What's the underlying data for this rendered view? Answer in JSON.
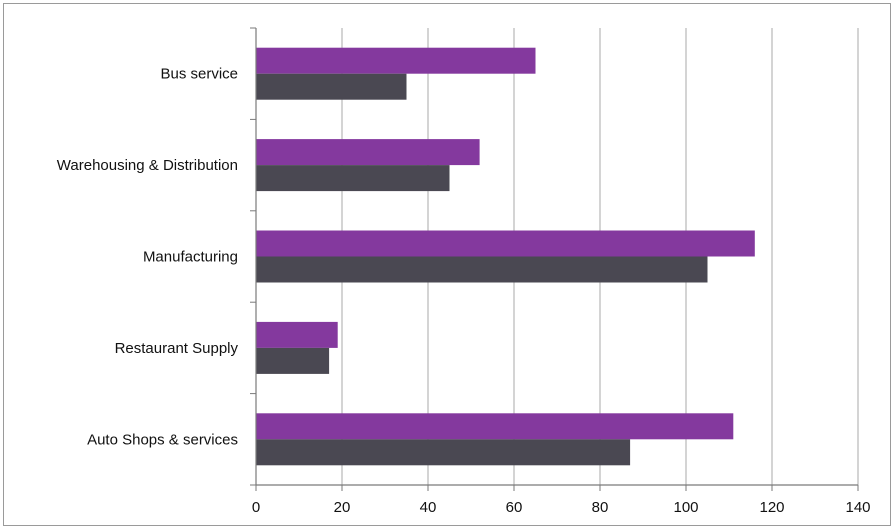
{
  "chart_data": {
    "type": "bar",
    "orientation": "horizontal",
    "categories": [
      "Bus service",
      "Warehousing & Distribution",
      "Manufacturing",
      "Restaurant Supply",
      "Auto Shops & services"
    ],
    "series": [
      {
        "values": [
          65,
          52,
          116,
          19,
          111
        ],
        "color": "#84399e"
      },
      {
        "values": [
          35,
          45,
          105,
          17,
          87
        ],
        "color": "#4a4852"
      }
    ],
    "xlim": [
      0,
      140
    ],
    "x_ticks": [
      "0",
      "20",
      "40",
      "60",
      "80",
      "100",
      "120",
      "140"
    ],
    "grid": true,
    "legend": "none"
  }
}
